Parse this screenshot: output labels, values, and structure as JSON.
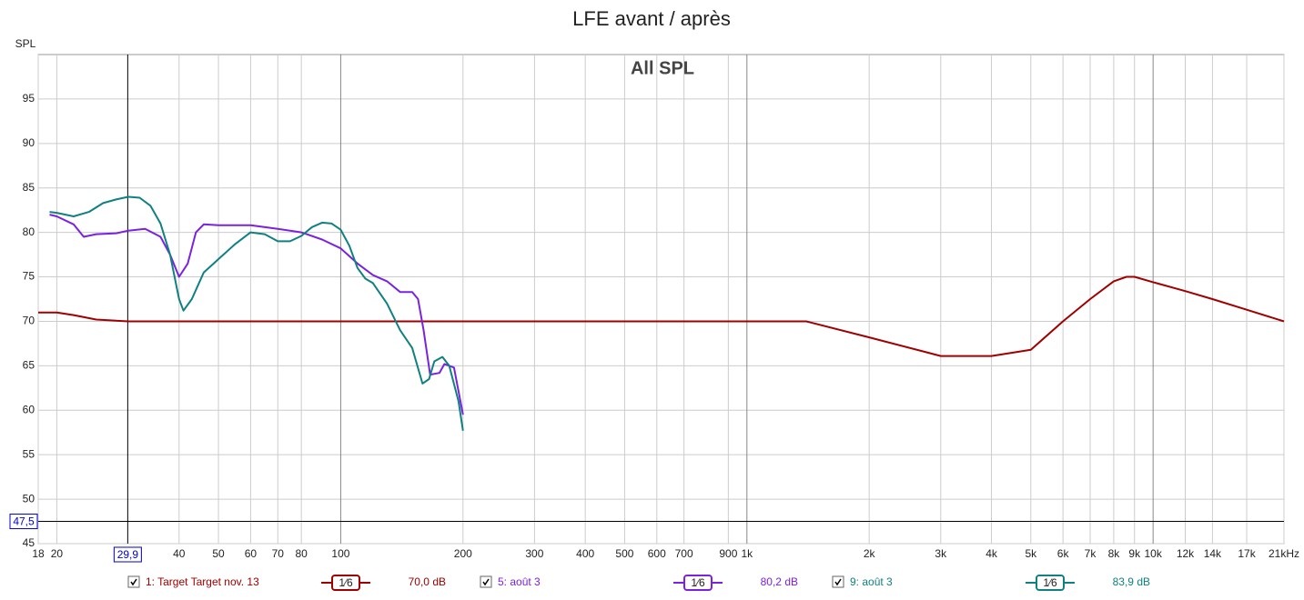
{
  "chart_data": {
    "type": "line",
    "title": "LFE avant / après",
    "annotation": "All SPL",
    "y_label": "SPL",
    "log_x": true,
    "grid": true,
    "xlim": [
      18,
      21000
    ],
    "ylim": [
      45,
      100
    ],
    "yticks": [
      45,
      50,
      55,
      60,
      65,
      70,
      75,
      80,
      85,
      90,
      95
    ],
    "xticks": [
      18,
      20,
      40,
      50,
      60,
      70,
      80,
      100,
      200,
      300,
      400,
      500,
      600,
      700,
      900,
      {
        "value": 1000,
        "label": "1k"
      },
      {
        "value": 2000,
        "label": "2k"
      },
      {
        "value": 3000,
        "label": "3k"
      },
      {
        "value": 4000,
        "label": "4k"
      },
      {
        "value": 5000,
        "label": "5k"
      },
      {
        "value": 6000,
        "label": "6k"
      },
      {
        "value": 7000,
        "label": "7k"
      },
      {
        "value": 8000,
        "label": "8k"
      },
      {
        "value": 9000,
        "label": "9k"
      },
      {
        "value": 10000,
        "label": "10k"
      },
      {
        "value": 12000,
        "label": "12k"
      },
      {
        "value": 14000,
        "label": "14k"
      },
      {
        "value": 17000,
        "label": "17k"
      },
      {
        "value": 21000,
        "label": "21kHz"
      }
    ],
    "cursor": {
      "x": {
        "value": 29.9,
        "label": "29,9"
      },
      "y": {
        "value": 47.5,
        "label": "47,5"
      }
    },
    "series": [
      {
        "name": "1: Target Target nov. 13",
        "color": "#a00000",
        "smoothing": "1⁄6",
        "cursor_value": {
          "value": 70.0,
          "label": "70,0 dB"
        },
        "x": [
          18,
          20,
          22,
          25,
          30,
          100,
          1000,
          1400,
          2000,
          3000,
          4000,
          5000,
          6000,
          7000,
          8000,
          8600,
          9000,
          10000,
          12000,
          14000,
          17000,
          21000
        ],
        "values": [
          71,
          71,
          70.7,
          70.2,
          70,
          70,
          70,
          70,
          68.2,
          66.1,
          66.1,
          66.8,
          70,
          72.5,
          74.5,
          75,
          75,
          74.4,
          73.4,
          72.5,
          71.3,
          70
        ]
      },
      {
        "name": "5: août 3",
        "color": "#7a22e0",
        "smoothing": "1⁄6",
        "cursor_value": {
          "value": 80.2,
          "label": "80,2 dB"
        },
        "x": [
          19.2,
          20,
          22,
          23.3,
          25,
          28,
          30,
          33,
          36,
          38,
          40,
          42,
          44,
          46,
          50,
          60,
          70,
          80,
          90,
          100,
          110,
          120,
          130,
          140,
          150,
          155,
          160,
          166,
          175,
          180,
          190,
          200
        ],
        "values": [
          82,
          81.8,
          80.9,
          79.5,
          79.8,
          79.9,
          80.2,
          80.4,
          79.5,
          77.5,
          75,
          76.5,
          80,
          80.9,
          80.8,
          80.8,
          80.4,
          80,
          79.2,
          78.2,
          76.5,
          75.2,
          74.5,
          73.3,
          73.3,
          72.5,
          69,
          64,
          64.2,
          65.2,
          64.8,
          59.5
        ]
      },
      {
        "name": "9: août 3",
        "color": "#108080",
        "smoothing": "1⁄6",
        "cursor_value": {
          "value": 83.9,
          "label": "83,9 dB"
        },
        "x": [
          19.2,
          20,
          22,
          24,
          26,
          28,
          30,
          32,
          34,
          36,
          38,
          40,
          41,
          43,
          46,
          50,
          55,
          60,
          65,
          70,
          75,
          80,
          85,
          90,
          95,
          100,
          105,
          110,
          115,
          120,
          130,
          140,
          150,
          159,
          165,
          170,
          178,
          185,
          195,
          200
        ],
        "values": [
          82.3,
          82.2,
          81.8,
          82.3,
          83.3,
          83.7,
          84,
          83.9,
          83,
          81,
          77.5,
          72.5,
          71.2,
          72.5,
          75.5,
          77,
          78.7,
          80,
          79.8,
          79,
          79,
          79.6,
          80.6,
          81.1,
          81,
          80.3,
          78.5,
          76,
          74.8,
          74.3,
          72,
          69,
          67,
          63,
          63.5,
          65.5,
          66,
          65,
          61,
          57.7
        ]
      }
    ]
  }
}
